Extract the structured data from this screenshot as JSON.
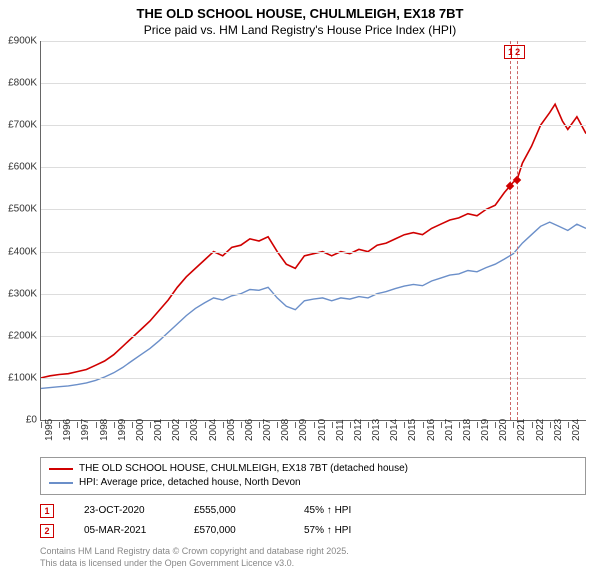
{
  "title_line1": "THE OLD SCHOOL HOUSE, CHULMLEIGH, EX18 7BT",
  "title_line2": "Price paid vs. HM Land Registry's House Price Index (HPI)",
  "chart": {
    "type": "line",
    "background_color": "#ffffff",
    "grid_color": "#dddddd",
    "axis_color": "#666666",
    "ylim": [
      0,
      900000
    ],
    "ytick_step": 100000,
    "ytick_labels": [
      "£0",
      "£100K",
      "£200K",
      "£300K",
      "£400K",
      "£500K",
      "£600K",
      "£700K",
      "£800K",
      "£900K"
    ],
    "xlim": [
      1995,
      2025
    ],
    "xtick_labels": [
      "1995",
      "1996",
      "1997",
      "1998",
      "1999",
      "2000",
      "2001",
      "2002",
      "2003",
      "2004",
      "2005",
      "2006",
      "2007",
      "2008",
      "2009",
      "2010",
      "2011",
      "2012",
      "2013",
      "2014",
      "2015",
      "2016",
      "2017",
      "2018",
      "2019",
      "2020",
      "2021",
      "2022",
      "2023",
      "2024"
    ],
    "series": [
      {
        "name": "THE OLD SCHOOL HOUSE, CHULMLEIGH, EX18 7BT (detached house)",
        "color": "#d00000",
        "line_width": 1.6,
        "data": [
          [
            1995,
            100000
          ],
          [
            1995.5,
            105000
          ],
          [
            1996,
            108000
          ],
          [
            1996.5,
            110000
          ],
          [
            1997,
            115000
          ],
          [
            1997.5,
            120000
          ],
          [
            1998,
            130000
          ],
          [
            1998.5,
            140000
          ],
          [
            1999,
            155000
          ],
          [
            1999.5,
            175000
          ],
          [
            2000,
            195000
          ],
          [
            2000.5,
            215000
          ],
          [
            2001,
            235000
          ],
          [
            2001.5,
            260000
          ],
          [
            2002,
            285000
          ],
          [
            2002.5,
            315000
          ],
          [
            2003,
            340000
          ],
          [
            2003.5,
            360000
          ],
          [
            2004,
            380000
          ],
          [
            2004.5,
            400000
          ],
          [
            2005,
            390000
          ],
          [
            2005.5,
            410000
          ],
          [
            2006,
            415000
          ],
          [
            2006.5,
            430000
          ],
          [
            2007,
            425000
          ],
          [
            2007.5,
            435000
          ],
          [
            2008,
            400000
          ],
          [
            2008.5,
            370000
          ],
          [
            2009,
            360000
          ],
          [
            2009.5,
            390000
          ],
          [
            2010,
            395000
          ],
          [
            2010.5,
            400000
          ],
          [
            2011,
            390000
          ],
          [
            2011.5,
            400000
          ],
          [
            2012,
            395000
          ],
          [
            2012.5,
            405000
          ],
          [
            2013,
            400000
          ],
          [
            2013.5,
            415000
          ],
          [
            2014,
            420000
          ],
          [
            2014.5,
            430000
          ],
          [
            2015,
            440000
          ],
          [
            2015.5,
            445000
          ],
          [
            2016,
            440000
          ],
          [
            2016.5,
            455000
          ],
          [
            2017,
            465000
          ],
          [
            2017.5,
            475000
          ],
          [
            2018,
            480000
          ],
          [
            2018.5,
            490000
          ],
          [
            2019,
            485000
          ],
          [
            2019.5,
            500000
          ],
          [
            2020,
            510000
          ],
          [
            2020.5,
            540000
          ],
          [
            2020.8,
            555000
          ],
          [
            2021,
            565000
          ],
          [
            2021.2,
            570000
          ],
          [
            2021.5,
            610000
          ],
          [
            2022,
            650000
          ],
          [
            2022.5,
            700000
          ],
          [
            2023,
            730000
          ],
          [
            2023.3,
            750000
          ],
          [
            2023.7,
            710000
          ],
          [
            2024,
            690000
          ],
          [
            2024.5,
            720000
          ],
          [
            2025,
            680000
          ]
        ]
      },
      {
        "name": "HPI: Average price, detached house, North Devon",
        "color": "#6b8fc9",
        "line_width": 1.4,
        "data": [
          [
            1995,
            75000
          ],
          [
            1995.5,
            77000
          ],
          [
            1996,
            79000
          ],
          [
            1996.5,
            81000
          ],
          [
            1997,
            84000
          ],
          [
            1997.5,
            88000
          ],
          [
            1998,
            94000
          ],
          [
            1998.5,
            102000
          ],
          [
            1999,
            112000
          ],
          [
            1999.5,
            125000
          ],
          [
            2000,
            140000
          ],
          [
            2000.5,
            155000
          ],
          [
            2001,
            170000
          ],
          [
            2001.5,
            188000
          ],
          [
            2002,
            208000
          ],
          [
            2002.5,
            228000
          ],
          [
            2003,
            248000
          ],
          [
            2003.5,
            265000
          ],
          [
            2004,
            278000
          ],
          [
            2004.5,
            290000
          ],
          [
            2005,
            285000
          ],
          [
            2005.5,
            295000
          ],
          [
            2006,
            300000
          ],
          [
            2006.5,
            310000
          ],
          [
            2007,
            308000
          ],
          [
            2007.5,
            315000
          ],
          [
            2008,
            290000
          ],
          [
            2008.5,
            270000
          ],
          [
            2009,
            262000
          ],
          [
            2009.5,
            283000
          ],
          [
            2010,
            287000
          ],
          [
            2010.5,
            290000
          ],
          [
            2011,
            283000
          ],
          [
            2011.5,
            290000
          ],
          [
            2012,
            287000
          ],
          [
            2012.5,
            293000
          ],
          [
            2013,
            290000
          ],
          [
            2013.5,
            300000
          ],
          [
            2014,
            305000
          ],
          [
            2014.5,
            312000
          ],
          [
            2015,
            318000
          ],
          [
            2015.5,
            322000
          ],
          [
            2016,
            319000
          ],
          [
            2016.5,
            330000
          ],
          [
            2017,
            337000
          ],
          [
            2017.5,
            344000
          ],
          [
            2018,
            347000
          ],
          [
            2018.5,
            355000
          ],
          [
            2019,
            352000
          ],
          [
            2019.5,
            362000
          ],
          [
            2020,
            370000
          ],
          [
            2020.5,
            382000
          ],
          [
            2021,
            395000
          ],
          [
            2021.5,
            420000
          ],
          [
            2022,
            440000
          ],
          [
            2022.5,
            460000
          ],
          [
            2023,
            470000
          ],
          [
            2023.5,
            460000
          ],
          [
            2024,
            450000
          ],
          [
            2024.5,
            465000
          ],
          [
            2025,
            455000
          ]
        ]
      }
    ],
    "markers": [
      {
        "n": "1",
        "x": 2020.8,
        "y": 555000
      },
      {
        "n": "2",
        "x": 2021.18,
        "y": 570000
      }
    ]
  },
  "legend": [
    {
      "color": "#d00000",
      "label": "THE OLD SCHOOL HOUSE, CHULMLEIGH, EX18 7BT (detached house)"
    },
    {
      "color": "#6b8fc9",
      "label": "HPI: Average price, detached house, North Devon"
    }
  ],
  "sales": [
    {
      "n": "1",
      "date": "23-OCT-2020",
      "price": "£555,000",
      "delta": "45% ↑ HPI"
    },
    {
      "n": "2",
      "date": "05-MAR-2021",
      "price": "£570,000",
      "delta": "57% ↑ HPI"
    }
  ],
  "footer_line1": "Contains HM Land Registry data © Crown copyright and database right 2025.",
  "footer_line2": "This data is licensed under the Open Government Licence v3.0."
}
